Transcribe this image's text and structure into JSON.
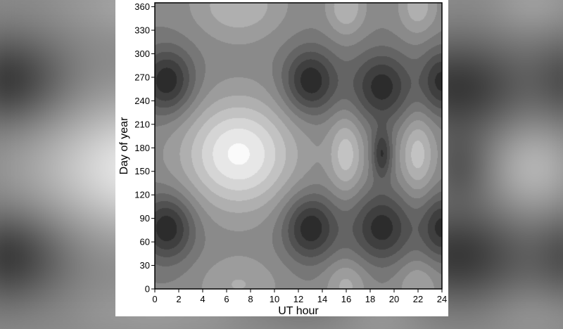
{
  "chart_data": {
    "type": "heatmap",
    "title": "",
    "xlabel": "UT hour",
    "ylabel": "Day of year",
    "xlim": [
      0,
      24
    ],
    "ylim": [
      0,
      365
    ],
    "x_ticks": [
      0,
      2,
      4,
      6,
      8,
      10,
      12,
      14,
      16,
      18,
      20,
      22,
      24
    ],
    "y_ticks": [
      0,
      30,
      60,
      90,
      120,
      150,
      180,
      210,
      240,
      270,
      300,
      330,
      360
    ],
    "colormap": "grayscale, dark = low, light = high",
    "levels": 12,
    "features": [
      {
        "kind": "max",
        "x": 7,
        "y": 172,
        "strength": 1.0,
        "sx": 3.2,
        "sy": 48
      },
      {
        "kind": "max",
        "x": 16,
        "y": 172,
        "strength": 0.55,
        "sx": 1.0,
        "sy": 35
      },
      {
        "kind": "max",
        "x": 22,
        "y": 172,
        "strength": 0.55,
        "sx": 1.0,
        "sy": 35
      },
      {
        "kind": "max",
        "x": 7,
        "y": 362,
        "strength": 0.45,
        "sx": 2.6,
        "sy": 30
      },
      {
        "kind": "max",
        "x": 16,
        "y": 360,
        "strength": 0.45,
        "sx": 1.1,
        "sy": 25
      },
      {
        "kind": "max",
        "x": 22,
        "y": 360,
        "strength": 0.4,
        "sx": 1.1,
        "sy": 25
      },
      {
        "kind": "max",
        "x": 16,
        "y": 5,
        "strength": 0.35,
        "sx": 1.2,
        "sy": 22
      },
      {
        "kind": "max",
        "x": 22,
        "y": 5,
        "strength": 0.3,
        "sx": 1.2,
        "sy": 22
      },
      {
        "kind": "max",
        "x": 7,
        "y": 5,
        "strength": 0.3,
        "sx": 2.4,
        "sy": 25
      },
      {
        "kind": "min",
        "x": 1,
        "y": 265,
        "strength": 0.85,
        "sx": 1.6,
        "sy": 30
      },
      {
        "kind": "min",
        "x": 13,
        "y": 265,
        "strength": 0.85,
        "sx": 1.6,
        "sy": 30
      },
      {
        "kind": "min",
        "x": 19,
        "y": 258,
        "strength": 0.8,
        "sx": 1.8,
        "sy": 32
      },
      {
        "kind": "min",
        "x": 24,
        "y": 265,
        "strength": 0.75,
        "sx": 1.2,
        "sy": 30
      },
      {
        "kind": "min",
        "x": 1,
        "y": 78,
        "strength": 0.85,
        "sx": 1.6,
        "sy": 30
      },
      {
        "kind": "min",
        "x": 13,
        "y": 78,
        "strength": 0.85,
        "sx": 1.6,
        "sy": 30
      },
      {
        "kind": "min",
        "x": 19,
        "y": 78,
        "strength": 0.8,
        "sx": 1.8,
        "sy": 32
      },
      {
        "kind": "min",
        "x": 24,
        "y": 78,
        "strength": 0.75,
        "sx": 1.2,
        "sy": 30
      },
      {
        "kind": "min",
        "x": 19,
        "y": 172,
        "strength": 0.7,
        "sx": 0.6,
        "sy": 22
      }
    ]
  }
}
